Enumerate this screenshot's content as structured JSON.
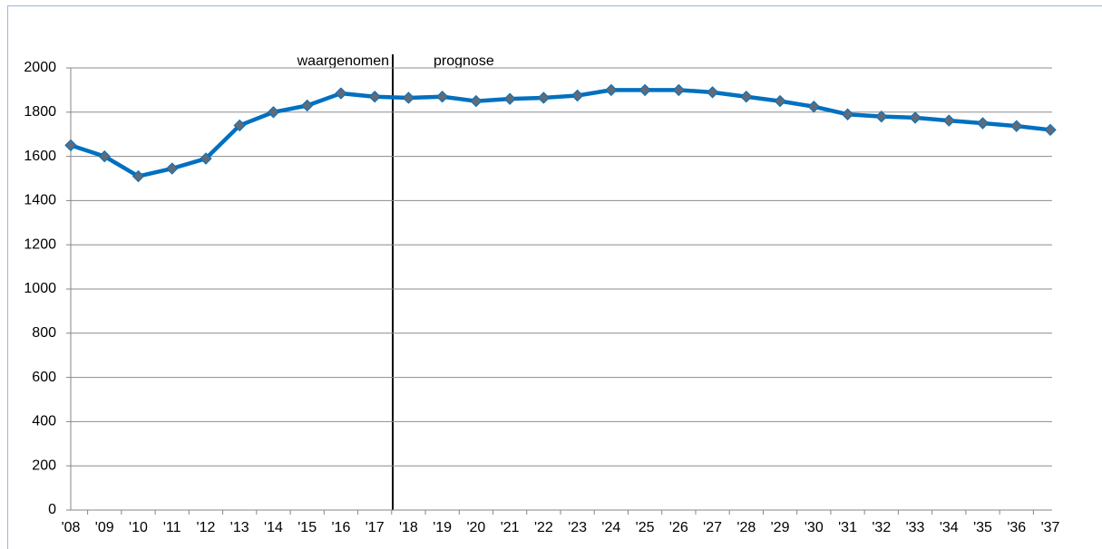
{
  "chart_data": {
    "type": "line",
    "categories": [
      "'08",
      "'09",
      "'10",
      "'11",
      "'12",
      "'13",
      "'14",
      "'15",
      "'16",
      "'17",
      "'18",
      "'19",
      "'20",
      "'21",
      "'22",
      "'23",
      "'24",
      "'25",
      "'26",
      "'27",
      "'28",
      "'29",
      "'30",
      "'31",
      "'32",
      "'33",
      "'34",
      "'35",
      "'36",
      "'37"
    ],
    "values": [
      1650,
      1600,
      1510,
      1545,
      1590,
      1740,
      1800,
      1830,
      1885,
      1870,
      1865,
      1870,
      1850,
      1860,
      1865,
      1875,
      1900,
      1900,
      1900,
      1890,
      1870,
      1850,
      1825,
      1790,
      1780,
      1775,
      1762,
      1750,
      1737,
      1720
    ],
    "color": "#0070c0",
    "marker_color": "#5f6b78",
    "ylim": [
      0,
      2000
    ],
    "yticks": [
      0,
      200,
      400,
      600,
      800,
      1000,
      1200,
      1400,
      1600,
      1800,
      2000
    ],
    "grid": true,
    "annotations": [
      "waargenomen",
      "prognose"
    ]
  }
}
